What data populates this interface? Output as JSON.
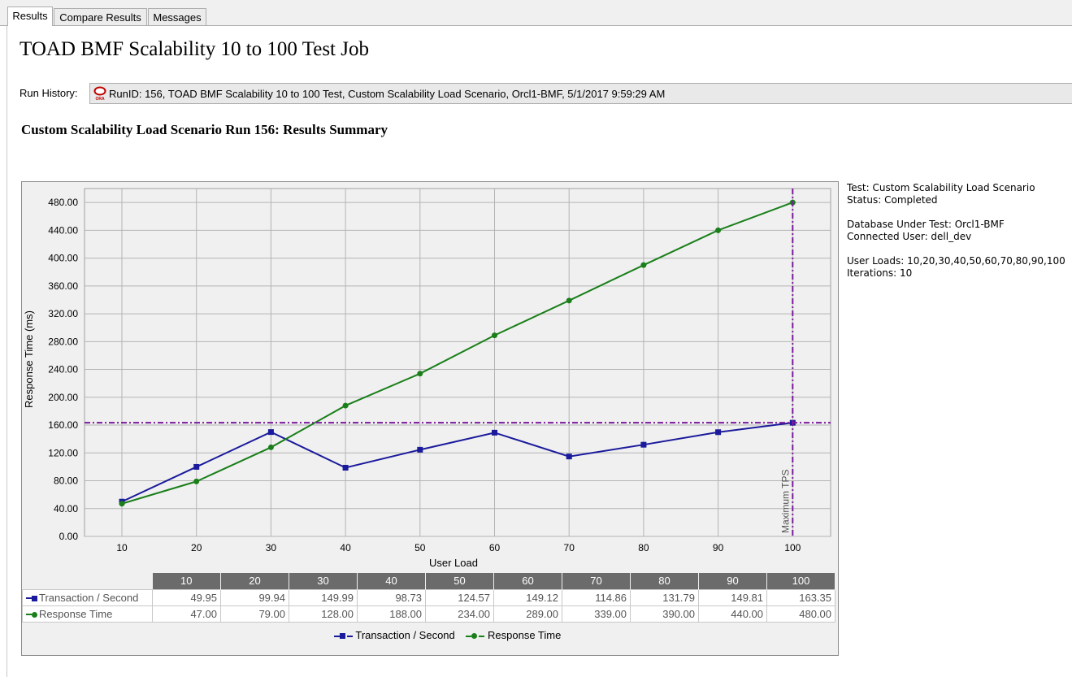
{
  "tabs": [
    {
      "label": "Results",
      "active": true
    },
    {
      "label": "Compare Results",
      "active": false
    },
    {
      "label": "Messages",
      "active": false
    }
  ],
  "page_title": "TOAD BMF Scalability 10 to 100 Test Job",
  "run_history": {
    "label": "Run History:",
    "icon": "oracle-db-icon",
    "icon_text": "ORA",
    "value": "RunID: 156, TOAD BMF Scalability 10 to 100 Test, Custom Scalability Load Scenario, Orcl1-BMF, 5/1/2017 9:59:29 AM"
  },
  "summary_title": "Custom Scalability Load Scenario Run 156: Results Summary",
  "info": {
    "test": "Test: Custom Scalability Load Scenario",
    "status": "Status: Completed",
    "database": "Database Under Test: Orcl1-BMF",
    "user": "Connected User: dell_dev",
    "user_loads": "User Loads: 10,20,30,40,50,60,70,80,90,100",
    "iterations": "Iterations: 10"
  },
  "colors": {
    "tps": "#1a1a9c",
    "response": "#1a7f1a",
    "max_tps_line": "#7a1a9c",
    "header_bg": "#6b6b6b"
  },
  "chart_data": {
    "type": "line",
    "xlabel": "User Load",
    "ylabel": "Response Time (ms)",
    "categories": [
      10,
      20,
      30,
      40,
      50,
      60,
      70,
      80,
      90,
      100
    ],
    "ylim": [
      0,
      500
    ],
    "yticks": [
      "0.00",
      "40.00",
      "80.00",
      "120.00",
      "160.00",
      "200.00",
      "240.00",
      "280.00",
      "320.00",
      "360.00",
      "400.00",
      "440.00",
      "480.00"
    ],
    "grid": true,
    "series": [
      {
        "name": "Transaction / Second",
        "marker": "square",
        "values": [
          49.95,
          99.94,
          149.99,
          98.73,
          124.57,
          149.12,
          114.86,
          131.79,
          149.81,
          163.35
        ]
      },
      {
        "name": "Response Time",
        "marker": "circle",
        "values": [
          47.0,
          79.0,
          128.0,
          188.0,
          234.0,
          289.0,
          339.0,
          390.0,
          440.0,
          480.0
        ]
      }
    ],
    "max_tps": {
      "label": "Maximum TPS",
      "x": 100,
      "y": 163.35
    },
    "table": {
      "headers": [
        "10",
        "20",
        "30",
        "40",
        "50",
        "60",
        "70",
        "80",
        "90",
        "100"
      ],
      "rows": [
        {
          "name": "Transaction / Second",
          "cells": [
            "49.95",
            "99.94",
            "149.99",
            "98.73",
            "124.57",
            "149.12",
            "114.86",
            "131.79",
            "149.81",
            "163.35"
          ]
        },
        {
          "name": "Response Time",
          "cells": [
            "47.00",
            "79.00",
            "128.00",
            "188.00",
            "234.00",
            "289.00",
            "339.00",
            "390.00",
            "440.00",
            "480.00"
          ]
        }
      ]
    },
    "legend": [
      "Transaction / Second",
      "Response Time"
    ],
    "legend_position": "bottom"
  }
}
